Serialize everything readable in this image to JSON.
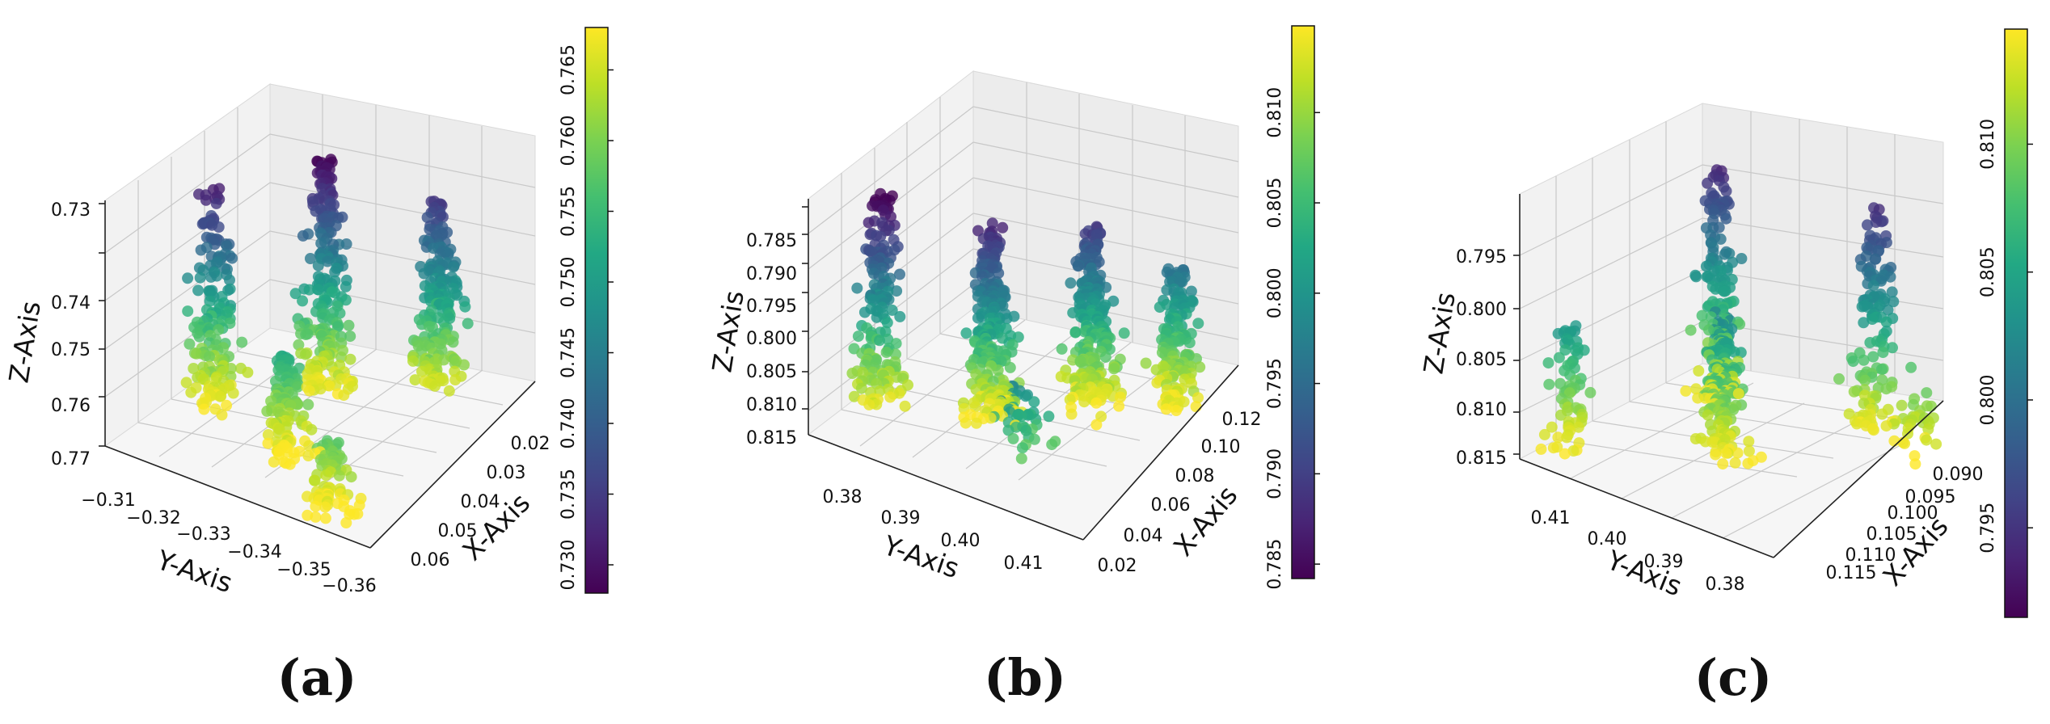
{
  "chart_data": [
    {
      "type": "scatter",
      "panel_label": "(a)",
      "xlabel": "X-Axis",
      "ylabel": "Y-Axis",
      "zlabel": "Z-Axis",
      "x_ticks": [
        "0.02",
        "0.03",
        "0.04",
        "0.05",
        "0.06"
      ],
      "y_ticks": [
        "−0.31",
        "−0.32",
        "−0.33",
        "−0.34",
        "−0.35",
        "−0.36"
      ],
      "z_ticks": [
        "0.73",
        "0.74",
        "0.75",
        "0.76",
        "0.77"
      ],
      "colorbar_ticks": [
        "0.730",
        "0.735",
        "0.740",
        "0.745",
        "0.750",
        "0.755",
        "0.760",
        "0.765"
      ],
      "xlim": [
        0.015,
        0.065
      ],
      "ylim": [
        -0.31,
        -0.36
      ],
      "zlim": [
        0.728,
        0.77
      ],
      "clim": [
        0.728,
        0.768
      ],
      "colormap": "viridis",
      "grid": true,
      "clusters": [
        {
          "x": 0.045,
          "y": -0.318,
          "z_top": 0.731,
          "z_bottom": 0.768,
          "n": 170
        },
        {
          "x": 0.03,
          "y": -0.33,
          "z_top": 0.728,
          "z_bottom": 0.768,
          "n": 230
        },
        {
          "x": 0.02,
          "y": -0.345,
          "z_top": 0.733,
          "z_bottom": 0.766,
          "n": 200
        },
        {
          "x": 0.05,
          "y": -0.335,
          "z_top": 0.752,
          "z_bottom": 0.769,
          "n": 120
        },
        {
          "x": 0.06,
          "y": -0.35,
          "z_top": 0.757,
          "z_bottom": 0.77,
          "n": 80
        }
      ]
    },
    {
      "type": "scatter",
      "panel_label": "(b)",
      "xlabel": "X-Axis",
      "ylabel": "Y-Axis",
      "zlabel": "Z-Axis",
      "x_ticks": [
        "0.02",
        "0.04",
        "0.06",
        "0.08",
        "0.10",
        "0.12"
      ],
      "y_ticks": [
        "0.38",
        "0.39",
        "0.40",
        "0.41"
      ],
      "z_ticks": [
        "0.785",
        "0.790",
        "0.795",
        "0.800",
        "0.805",
        "0.810",
        "0.815"
      ],
      "colorbar_ticks": [
        "0.785",
        "0.790",
        "0.795",
        "0.800",
        "0.805",
        "0.810"
      ],
      "xlim": [
        0.015,
        0.125
      ],
      "ylim": [
        0.375,
        0.415
      ],
      "zlim": [
        0.782,
        0.816
      ],
      "clim": [
        0.7842,
        0.8148
      ],
      "colormap": "viridis",
      "grid": true,
      "clusters": [
        {
          "x": 0.1,
          "y": 0.38,
          "z_top": 0.784,
          "z_bottom": 0.814,
          "n": 180
        },
        {
          "x": 0.08,
          "y": 0.392,
          "z_top": 0.787,
          "z_bottom": 0.815,
          "n": 260
        },
        {
          "x": 0.05,
          "y": 0.4,
          "z_top": 0.789,
          "z_bottom": 0.815,
          "n": 240
        },
        {
          "x": 0.03,
          "y": 0.408,
          "z_top": 0.795,
          "z_bottom": 0.815,
          "n": 160
        },
        {
          "x": 0.12,
          "y": 0.405,
          "z_top": 0.798,
          "z_bottom": 0.808,
          "n": 40
        }
      ]
    },
    {
      "type": "scatter",
      "panel_label": "(c)",
      "xlabel": "X-Axis",
      "ylabel": "Y-Axis",
      "zlabel": "Z-Axis",
      "x_ticks": [
        "0.090",
        "0.095",
        "0.100",
        "0.105",
        "0.110",
        "0.115"
      ],
      "y_ticks": [
        "0.41",
        "0.40",
        "0.39",
        "0.38"
      ],
      "z_ticks": [
        "0.795",
        "0.800",
        "0.805",
        "0.810",
        "0.815"
      ],
      "colorbar_ticks": [
        "0.795",
        "0.800",
        "0.805",
        "0.810"
      ],
      "xlim": [
        0.087,
        0.118
      ],
      "ylim": [
        0.415,
        0.375
      ],
      "zlim": [
        0.792,
        0.8155
      ],
      "clim": [
        0.7915,
        0.8145
      ],
      "colormap": "viridis",
      "grid": true,
      "clusters": [
        {
          "x": 0.095,
          "y": 0.405,
          "z_top": 0.7935,
          "z_bottom": 0.8145,
          "n": 150
        },
        {
          "x": 0.09,
          "y": 0.385,
          "z_top": 0.7945,
          "z_bottom": 0.8145,
          "n": 140
        },
        {
          "x": 0.105,
          "y": 0.395,
          "z_top": 0.802,
          "z_bottom": 0.8145,
          "n": 170
        },
        {
          "x": 0.115,
          "y": 0.41,
          "z_top": 0.8035,
          "z_bottom": 0.8145,
          "n": 70
        },
        {
          "x": 0.09,
          "y": 0.378,
          "z_top": 0.809,
          "z_bottom": 0.8145,
          "n": 30
        }
      ]
    }
  ]
}
